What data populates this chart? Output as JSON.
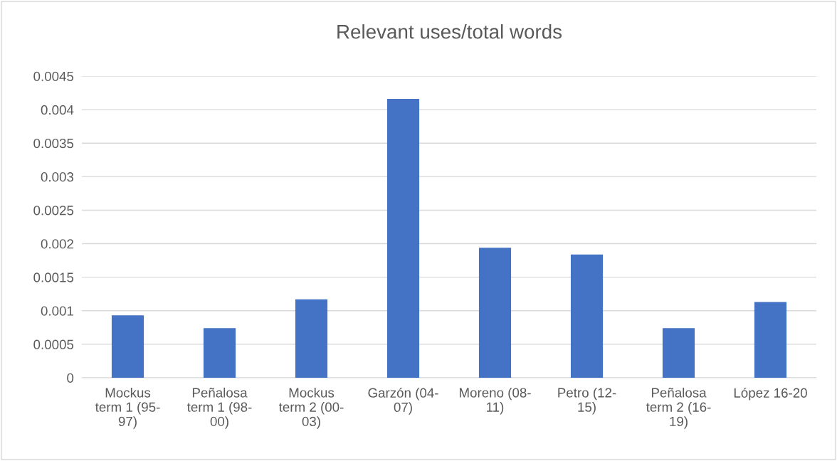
{
  "chart_data": {
    "type": "bar",
    "title": "Relevant uses/total words",
    "categories": [
      "Mockus\nterm 1 (95-\n97)",
      "Peñalosa\nterm 1 (98-\n00)",
      "Mockus\nterm 2 (00-\n03)",
      "Garzón (04-\n07)",
      "Moreno (08-\n11)",
      "Petro (12-\n15)",
      "Peñalosa\nterm 2 (16-\n19)",
      "López 16-20"
    ],
    "values": [
      0.00093,
      0.00074,
      0.00117,
      0.00416,
      0.00194,
      0.00184,
      0.00074,
      0.00113
    ],
    "color": "#4472c4",
    "ylim": [
      0,
      0.0045
    ],
    "yticks": [
      0,
      0.0005,
      0.001,
      0.0015,
      0.002,
      0.0025,
      0.003,
      0.0035,
      0.004,
      0.0045
    ],
    "grid": "y"
  }
}
